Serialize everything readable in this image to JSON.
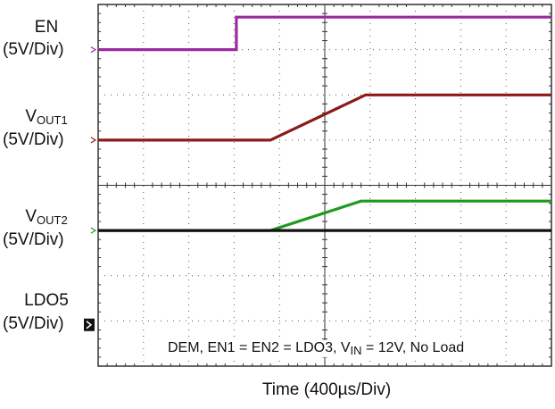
{
  "chart_data": {
    "type": "line",
    "title": "",
    "xlabel": "Time  (400µs/Div)",
    "grid": true,
    "divisions": {
      "x": 10,
      "y": 8
    },
    "annotation": {
      "prefix": "DEM, EN1 = EN2 = LDO3, V",
      "sub": "IN",
      "suffix": " = 12V, No Load"
    },
    "channels": [
      {
        "name": "EN",
        "sub": "",
        "scale": "(5V/Div)",
        "color": "#9b2aa0",
        "ref_div": 1.0,
        "points": [
          [
            0,
            0.0
          ],
          [
            3.05,
            0.0
          ],
          [
            3.05,
            0.72
          ],
          [
            10,
            0.72
          ]
        ]
      },
      {
        "name": "V",
        "sub": "OUT1",
        "scale": "(5V/Div)",
        "color": "#8b1a1a",
        "ref_div": 3.0,
        "points": [
          [
            0,
            0.0
          ],
          [
            3.8,
            0.0
          ],
          [
            5.9,
            1.0
          ],
          [
            10,
            1.0
          ]
        ]
      },
      {
        "name": "V",
        "sub": "OUT2",
        "scale": "(5V/Div)",
        "color": "#1f9a1f",
        "ref_div": 5.0,
        "points": [
          [
            0,
            0.0
          ],
          [
            3.8,
            0.0
          ],
          [
            5.8,
            0.65
          ],
          [
            10,
            0.65
          ]
        ]
      },
      {
        "name": "LDO5",
        "sub": "",
        "scale": "(5V/Div)",
        "color": "#111111",
        "ref_div": 6.0,
        "points": [
          [
            0,
            1.0
          ],
          [
            10,
            1.0
          ]
        ]
      }
    ]
  }
}
